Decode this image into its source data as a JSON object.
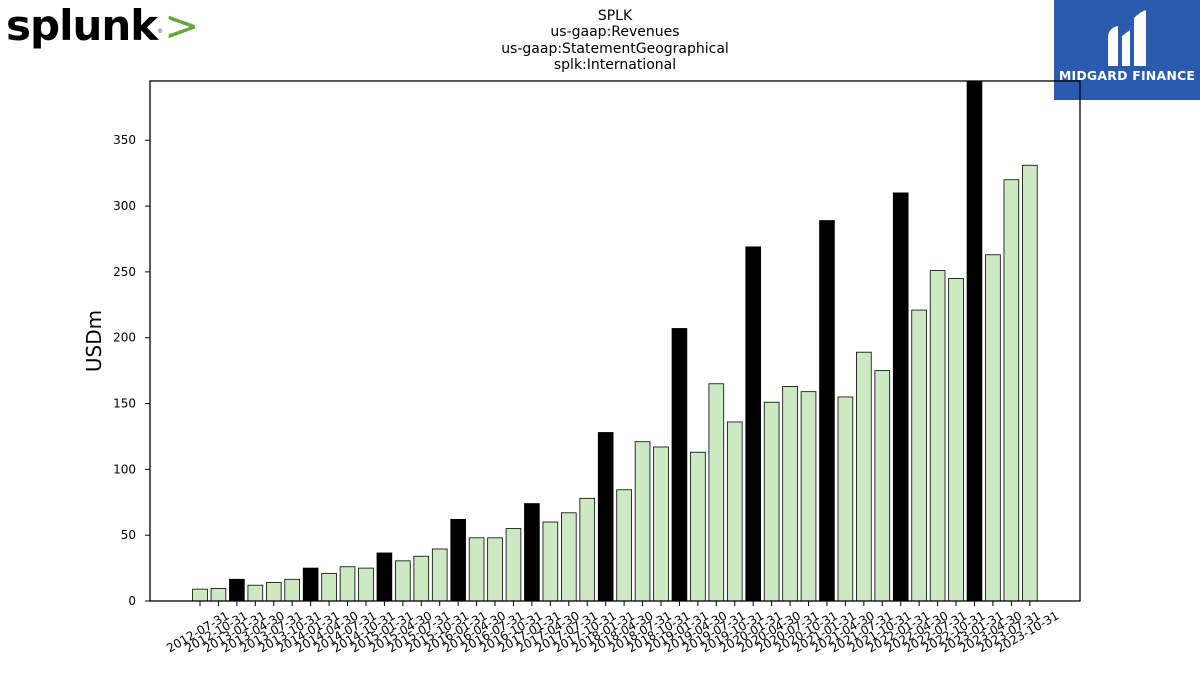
{
  "brand": {
    "logo_text": "splunk",
    "logo_chevron": ">",
    "logo_reg": "®"
  },
  "partner": {
    "name": "MIDGARD FINANCE"
  },
  "colors": {
    "highlight": "#000000",
    "normal": "#cde9c4",
    "edge": "#000000",
    "partner_bg": "#2a5bb0",
    "logo_chevron": "#65a637"
  },
  "chart_data": {
    "type": "bar",
    "title": "SPLK",
    "subtitle_lines": [
      "us-gaap:Revenues",
      "us-gaap:StatementGeographical",
      "splk:International"
    ],
    "xlabel": "",
    "ylabel": "USDm",
    "ylim": [
      0,
      395
    ],
    "yticks": [
      0,
      50,
      100,
      150,
      200,
      250,
      300,
      350
    ],
    "grid": false,
    "legend": "none",
    "categories": [
      "2012-07-31",
      "2012-10-31",
      "2013-01-31",
      "2013-04-30",
      "2013-07-31",
      "2013-10-31",
      "2014-01-31",
      "2014-04-30",
      "2014-07-31",
      "2014-10-31",
      "2015-01-31",
      "2015-04-30",
      "2015-07-31",
      "2015-10-31",
      "2016-01-31",
      "2016-04-30",
      "2016-07-31",
      "2016-10-31",
      "2017-01-31",
      "2017-04-30",
      "2017-07-31",
      "2017-10-31",
      "2018-01-31",
      "2018-04-30",
      "2018-07-31",
      "2018-10-31",
      "2019-01-31",
      "2019-04-30",
      "2019-07-31",
      "2019-10-31",
      "2020-01-31",
      "2020-04-30",
      "2020-07-31",
      "2020-10-31",
      "2021-01-31",
      "2021-04-30",
      "2021-07-31",
      "2021-10-31",
      "2022-01-31",
      "2022-04-30",
      "2022-07-31",
      "2022-10-31",
      "2023-01-31",
      "2023-04-30",
      "2023-07-31",
      "2023-10-31"
    ],
    "values": [
      9,
      9.5,
      16.5,
      12,
      14,
      16.5,
      25,
      21,
      26,
      25,
      36.5,
      30.5,
      34,
      39.5,
      62,
      48,
      48,
      55,
      74,
      60,
      67,
      78,
      128,
      84.5,
      121,
      117,
      207,
      113,
      165,
      136,
      269,
      151,
      163,
      159,
      289,
      155,
      189,
      175,
      310,
      221,
      251,
      245,
      395,
      263,
      320,
      331
    ],
    "highlight": [
      false,
      false,
      true,
      false,
      false,
      false,
      true,
      false,
      false,
      false,
      true,
      false,
      false,
      false,
      true,
      false,
      false,
      false,
      true,
      false,
      false,
      false,
      true,
      false,
      false,
      false,
      true,
      false,
      false,
      false,
      true,
      false,
      false,
      false,
      true,
      false,
      false,
      false,
      true,
      false,
      false,
      false,
      true,
      false,
      false,
      false
    ]
  }
}
